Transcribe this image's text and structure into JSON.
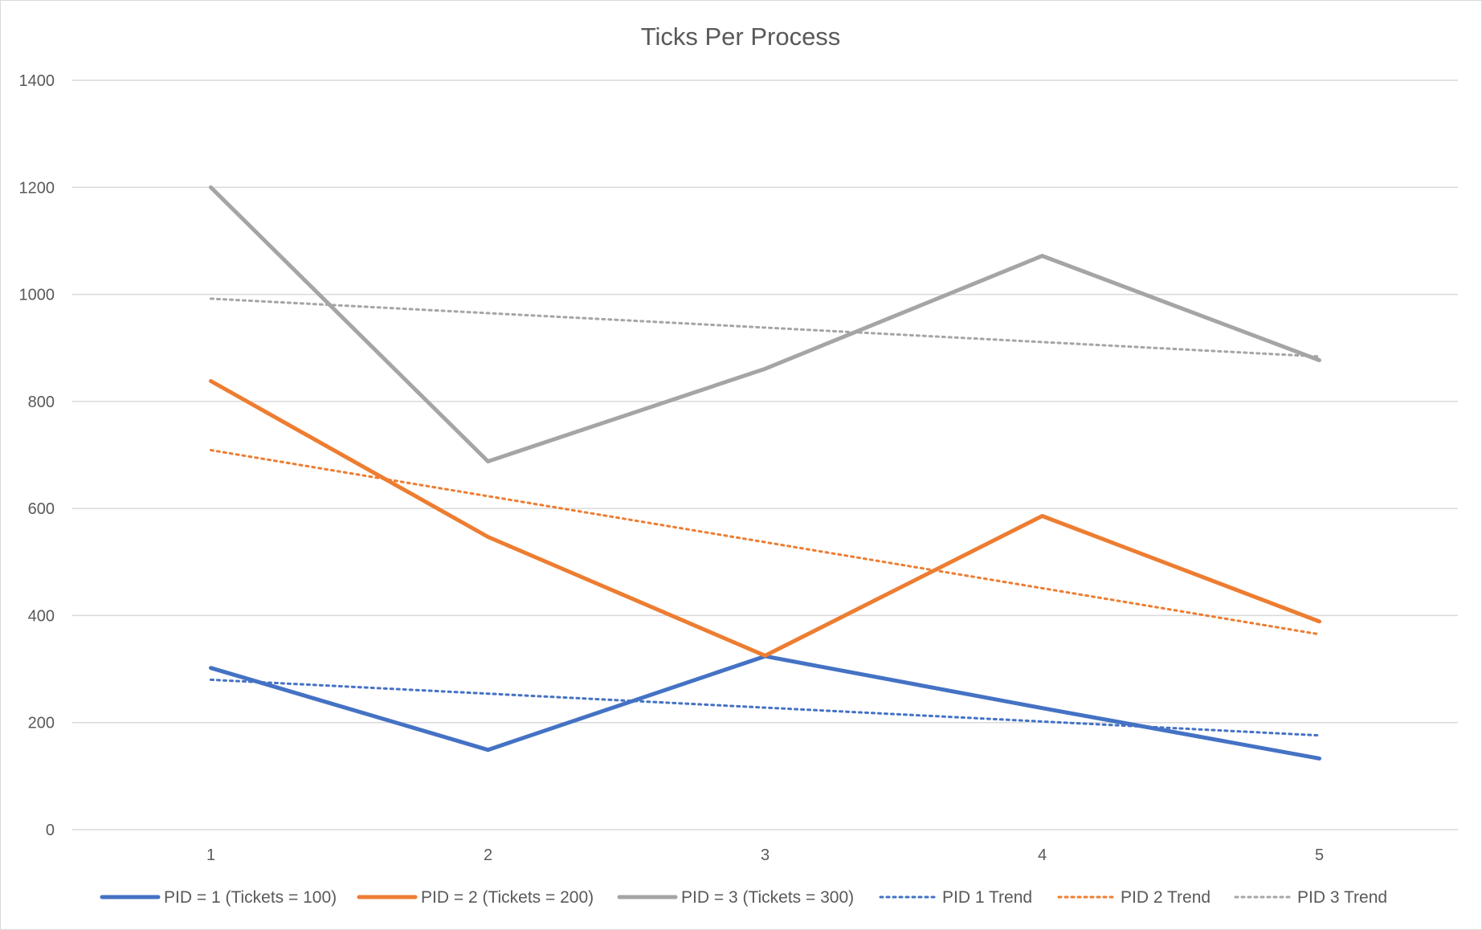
{
  "chart_data": {
    "type": "line",
    "title": "Ticks Per Process",
    "xlabel": "",
    "ylabel": "",
    "categories": [
      "1",
      "2",
      "3",
      "4",
      "5"
    ],
    "x": [
      1,
      2,
      3,
      4,
      5
    ],
    "ylim": [
      0,
      1400
    ],
    "yticks": [
      0,
      200,
      400,
      600,
      800,
      1000,
      1200,
      1400
    ],
    "grid": true,
    "legend_position": "bottom",
    "series": [
      {
        "name": "PID = 1 (Tickets = 100)",
        "values": [
          302,
          149,
          324,
          227,
          133
        ],
        "color": "#4472C4",
        "style": "solid"
      },
      {
        "name": "PID = 2 (Tickets = 200)",
        "values": [
          838,
          547,
          325,
          586,
          389
        ],
        "color": "#ED7D31",
        "style": "solid"
      },
      {
        "name": "PID = 3 (Tickets = 300)",
        "values": [
          1200,
          688,
          861,
          1072,
          877
        ],
        "color": "#A5A5A5",
        "style": "solid"
      },
      {
        "name": "PID 1 Trend",
        "values": [
          280,
          254,
          228,
          202,
          176
        ],
        "color": "#4472C4",
        "style": "dotted"
      },
      {
        "name": "PID 2 Trend",
        "values": [
          709,
          623,
          537,
          451,
          365
        ],
        "color": "#ED7D31",
        "style": "dotted"
      },
      {
        "name": "PID 3 Trend",
        "values": [
          992,
          965,
          938,
          911,
          884
        ],
        "color": "#A5A5A5",
        "style": "dotted"
      }
    ]
  }
}
